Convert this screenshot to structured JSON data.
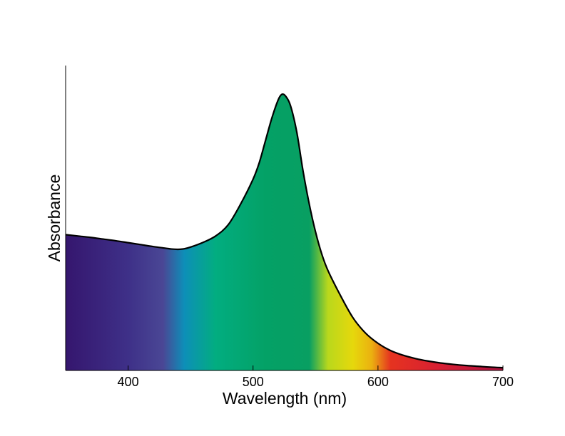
{
  "chart_data": {
    "type": "area",
    "title": "",
    "xlabel": "Wavelength (nm)",
    "ylabel": "Absorbance",
    "xlim": [
      350,
      700
    ],
    "ylim": [
      0,
      1.1
    ],
    "x_ticks": [
      400,
      500,
      600,
      700
    ],
    "y_ticks": [],
    "grid": false,
    "legend": "none",
    "fill": "visible-spectrum gradient under the curve",
    "line_color": "#000000",
    "spectrum_colors": [
      {
        "wavelength": 350,
        "color": "#35166e"
      },
      {
        "wavelength": 400,
        "color": "#3e3088"
      },
      {
        "wavelength": 428,
        "color": "#4a4795"
      },
      {
        "wavelength": 445,
        "color": "#0d8fb8"
      },
      {
        "wavelength": 470,
        "color": "#02ad80"
      },
      {
        "wavelength": 510,
        "color": "#04a166"
      },
      {
        "wavelength": 545,
        "color": "#089f62"
      },
      {
        "wavelength": 560,
        "color": "#b9d81c"
      },
      {
        "wavelength": 580,
        "color": "#e6d80c"
      },
      {
        "wavelength": 595,
        "color": "#ebb010"
      },
      {
        "wavelength": 610,
        "color": "#e53320"
      },
      {
        "wavelength": 650,
        "color": "#d71f33"
      },
      {
        "wavelength": 700,
        "color": "#b0123f"
      }
    ],
    "series": [
      {
        "x": [
          350,
          360,
          370,
          380,
          390,
          400,
          410,
          420,
          430,
          435,
          440,
          445,
          450,
          460,
          470,
          480,
          490,
          500,
          505,
          510,
          515,
          520,
          523,
          526,
          530,
          535,
          540,
          545,
          550,
          555,
          560,
          570,
          580,
          590,
          600,
          610,
          620,
          630,
          640,
          650,
          660,
          670,
          680,
          690,
          700
        ],
        "y": [
          0.49,
          0.485,
          0.48,
          0.474,
          0.468,
          0.461,
          0.454,
          0.447,
          0.441,
          0.438,
          0.437,
          0.439,
          0.445,
          0.462,
          0.485,
          0.525,
          0.6,
          0.69,
          0.75,
          0.83,
          0.91,
          0.975,
          0.996,
          0.99,
          0.955,
          0.86,
          0.72,
          0.6,
          0.5,
          0.42,
          0.36,
          0.27,
          0.19,
          0.135,
          0.098,
          0.072,
          0.055,
          0.043,
          0.034,
          0.027,
          0.022,
          0.018,
          0.015,
          0.012,
          0.01
        ]
      }
    ]
  }
}
